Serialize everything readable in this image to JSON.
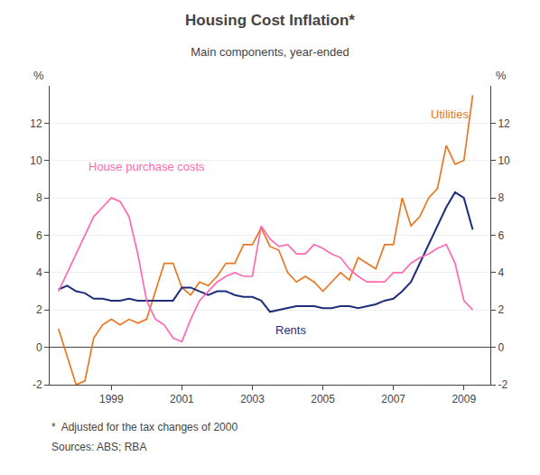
{
  "chart_data": {
    "type": "line",
    "title": "Housing Cost Inflation*",
    "subtitle": "Main components, year-ended",
    "footnote": "*  Adjusted for the tax changes of 2000",
    "sources": "Sources: ABS; RBA",
    "ylabel": "%",
    "y2label": "%",
    "x": [
      1997.5,
      1997.75,
      1998.0,
      1998.25,
      1998.5,
      1998.75,
      1999.0,
      1999.25,
      1999.5,
      1999.75,
      2000.0,
      2000.25,
      2000.5,
      2000.75,
      2001.0,
      2001.25,
      2001.5,
      2001.75,
      2002.0,
      2002.25,
      2002.5,
      2002.75,
      2003.0,
      2003.25,
      2003.5,
      2003.75,
      2004.0,
      2004.25,
      2004.5,
      2004.75,
      2005.0,
      2005.25,
      2005.5,
      2005.75,
      2006.0,
      2006.25,
      2006.5,
      2006.75,
      2007.0,
      2007.25,
      2007.5,
      2007.75,
      2008.0,
      2008.25,
      2008.5,
      2008.75,
      2009.0,
      2009.25
    ],
    "series": [
      {
        "name": "Utilities",
        "color": "#E87722",
        "values": [
          1.0,
          -0.5,
          -2.0,
          -1.8,
          0.5,
          1.2,
          1.5,
          1.2,
          1.5,
          1.3,
          1.5,
          3.0,
          4.5,
          4.5,
          3.2,
          2.8,
          3.5,
          3.3,
          3.8,
          4.5,
          4.5,
          5.5,
          5.5,
          6.4,
          5.4,
          5.2,
          4.0,
          3.5,
          3.8,
          3.5,
          3.0,
          3.5,
          4.0,
          3.6,
          4.8,
          4.5,
          4.2,
          5.5,
          5.5,
          8.0,
          6.5,
          7.0,
          8.0,
          8.5,
          10.8,
          9.8,
          10.0,
          13.5
        ]
      },
      {
        "name": "Rents",
        "color": "#1F2D7B",
        "values": [
          3.1,
          3.3,
          3.0,
          2.9,
          2.6,
          2.6,
          2.5,
          2.5,
          2.6,
          2.5,
          2.5,
          2.5,
          2.5,
          2.5,
          3.2,
          3.2,
          3.0,
          2.8,
          3.0,
          3.0,
          2.8,
          2.7,
          2.7,
          2.5,
          1.9,
          2.0,
          2.1,
          2.2,
          2.2,
          2.2,
          2.1,
          2.1,
          2.2,
          2.2,
          2.1,
          2.2,
          2.3,
          2.5,
          2.6,
          3.0,
          3.5,
          4.5,
          5.5,
          6.5,
          7.5,
          8.3,
          8.0,
          6.3
        ]
      },
      {
        "name": "House purchase costs",
        "color": "#FF69B4",
        "values": [
          3.0,
          4.0,
          5.0,
          6.0,
          7.0,
          7.5,
          8.0,
          7.8,
          7.0,
          5.0,
          2.5,
          1.5,
          1.2,
          0.5,
          0.3,
          1.5,
          2.5,
          3.0,
          3.5,
          3.8,
          4.0,
          3.8,
          3.8,
          6.5,
          5.8,
          5.4,
          5.5,
          5.0,
          5.0,
          5.5,
          5.3,
          5.0,
          4.8,
          4.2,
          3.8,
          3.5,
          3.5,
          3.5,
          4.0,
          4.0,
          4.5,
          4.8,
          5.0,
          5.3,
          5.5,
          4.5,
          2.5,
          2.0
        ]
      }
    ],
    "annotations": [
      {
        "text": "Utilities",
        "x": 2008.6,
        "y": 12.0,
        "color": "#E87722"
      },
      {
        "text": "Rents",
        "x": 2003.6,
        "y": 1.4,
        "color": "#1F2D7B"
      },
      {
        "text": "House purchase costs",
        "x": 1998.3,
        "y": 9.2,
        "color": "#FF69B4"
      }
    ],
    "xlim": [
      1997.25,
      2009.75
    ],
    "xticks": [
      1999,
      2001,
      2003,
      2005,
      2007,
      2009
    ],
    "ylim": [
      -2,
      14
    ],
    "yticks": [
      -2,
      0,
      2,
      4,
      6,
      8,
      10,
      12
    ],
    "y2lim": [
      -2,
      14
    ],
    "y2ticks": [
      -2,
      0,
      2,
      4,
      6,
      8,
      10,
      12
    ],
    "grid": true
  }
}
